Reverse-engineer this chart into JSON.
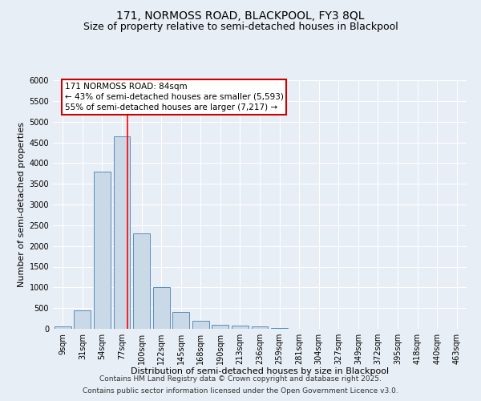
{
  "title": "171, NORMOSS ROAD, BLACKPOOL, FY3 8QL",
  "subtitle": "Size of property relative to semi-detached houses in Blackpool",
  "xlabel": "Distribution of semi-detached houses by size in Blackpool",
  "ylabel": "Number of semi-detached properties",
  "bar_labels": [
    "9sqm",
    "31sqm",
    "54sqm",
    "77sqm",
    "100sqm",
    "122sqm",
    "145sqm",
    "168sqm",
    "190sqm",
    "213sqm",
    "236sqm",
    "259sqm",
    "281sqm",
    "304sqm",
    "327sqm",
    "349sqm",
    "372sqm",
    "395sqm",
    "418sqm",
    "440sqm",
    "463sqm"
  ],
  "bar_values": [
    50,
    450,
    3800,
    4650,
    2300,
    1000,
    400,
    200,
    100,
    75,
    50,
    25,
    0,
    0,
    0,
    0,
    0,
    0,
    0,
    0,
    0
  ],
  "bar_color": "#c9d9e8",
  "bar_edge_color": "#5b8db8",
  "red_line_x": 3.27,
  "annotation_text": "171 NORMOSS ROAD: 84sqm\n← 43% of semi-detached houses are smaller (5,593)\n55% of semi-detached houses are larger (7,217) →",
  "annotation_box_color": "#ffffff",
  "annotation_box_edge_color": "#cc0000",
  "ylim": [
    0,
    6000
  ],
  "yticks": [
    0,
    500,
    1000,
    1500,
    2000,
    2500,
    3000,
    3500,
    4000,
    4500,
    5000,
    5500,
    6000
  ],
  "bg_color": "#e8eef5",
  "footer_line1": "Contains HM Land Registry data © Crown copyright and database right 2025.",
  "footer_line2": "Contains public sector information licensed under the Open Government Licence v3.0.",
  "title_fontsize": 10,
  "subtitle_fontsize": 9,
  "axis_label_fontsize": 8,
  "tick_fontsize": 7,
  "annotation_fontsize": 7.5,
  "footer_fontsize": 6.5
}
